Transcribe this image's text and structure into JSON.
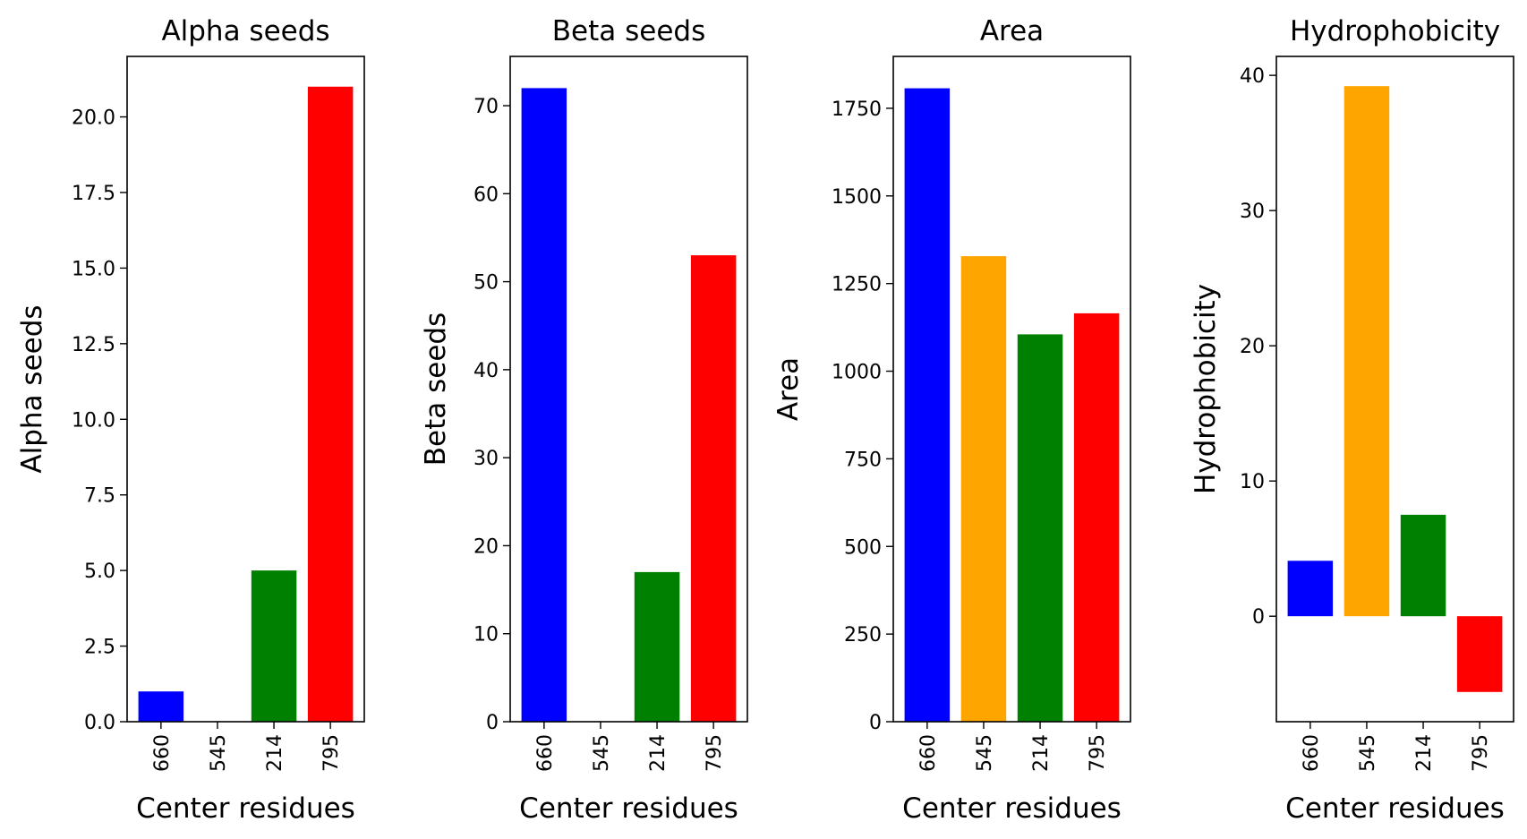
{
  "chart_data": [
    {
      "type": "bar",
      "title": "Alpha seeds",
      "xlabel": "Center residues",
      "ylabel": "Alpha seeds",
      "categories": [
        "660",
        "545",
        "214",
        "795"
      ],
      "values": [
        1,
        0,
        5,
        21
      ],
      "colors": [
        "#0000ff",
        "#ffa500",
        "#008000",
        "#ff0000"
      ],
      "ylim": [
        0,
        22
      ],
      "yticks": [
        0,
        2.5,
        5,
        7.5,
        10,
        12.5,
        15,
        17.5,
        20
      ],
      "ytick_labels": [
        "0.0",
        "2.5",
        "5.0",
        "7.5",
        "10.0",
        "12.5",
        "15.0",
        "17.5",
        "20.0"
      ],
      "grid": false,
      "legend": "none"
    },
    {
      "type": "bar",
      "title": "Beta seeds",
      "xlabel": "Center residues",
      "ylabel": "Beta seeds",
      "categories": [
        "660",
        "545",
        "214",
        "795"
      ],
      "values": [
        72,
        0,
        17,
        53
      ],
      "colors": [
        "#0000ff",
        "#ffa500",
        "#008000",
        "#ff0000"
      ],
      "ylim": [
        0,
        75.6
      ],
      "yticks": [
        0,
        10,
        20,
        30,
        40,
        50,
        60,
        70
      ],
      "ytick_labels": [
        "0",
        "10",
        "20",
        "30",
        "40",
        "50",
        "60",
        "70"
      ],
      "grid": false,
      "legend": "none"
    },
    {
      "type": "bar",
      "title": "Area",
      "xlabel": "Center residues",
      "ylabel": "Area",
      "categories": [
        "660",
        "545",
        "214",
        "795"
      ],
      "values": [
        1807,
        1328,
        1105,
        1165
      ],
      "colors": [
        "#0000ff",
        "#ffa500",
        "#008000",
        "#ff0000"
      ],
      "ylim": [
        0,
        1898
      ],
      "yticks": [
        0,
        250,
        500,
        750,
        1000,
        1250,
        1500,
        1750
      ],
      "ytick_labels": [
        "0",
        "250",
        "500",
        "750",
        "1000",
        "1250",
        "1500",
        "1750"
      ],
      "grid": false,
      "legend": "none"
    },
    {
      "type": "bar",
      "title": "Hydrophobicity",
      "xlabel": "Center residues",
      "ylabel": "Hydrophobicity",
      "categories": [
        "660",
        "545",
        "214",
        "795"
      ],
      "values": [
        4.1,
        39.2,
        7.5,
        -5.6
      ],
      "colors": [
        "#0000ff",
        "#ffa500",
        "#008000",
        "#ff0000"
      ],
      "ylim": [
        -7.8,
        41.4
      ],
      "yticks": [
        0,
        10,
        20,
        30,
        40
      ],
      "ytick_labels": [
        "0",
        "10",
        "20",
        "30",
        "40"
      ],
      "grid": false,
      "legend": "none"
    }
  ]
}
